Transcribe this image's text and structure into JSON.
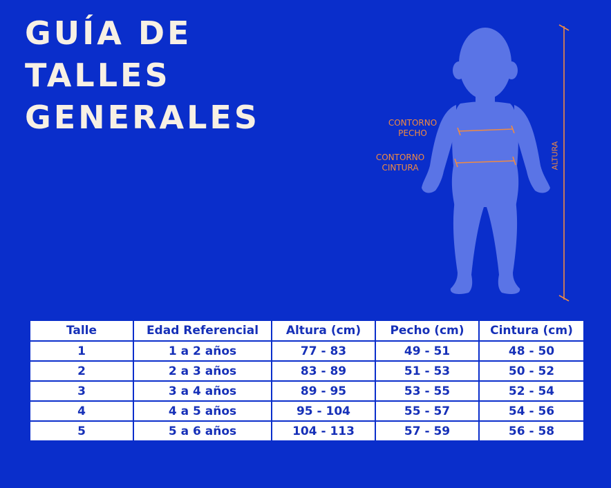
{
  "title_lines": [
    "GUÍA DE",
    "TALLES",
    "GENERALES"
  ],
  "figure": {
    "labels": {
      "chest": "CONTORNO\nPECHO",
      "waist": "CONTORNO\nCINTURA",
      "height": "ALTURA"
    },
    "silhouette_color": "#5a74e6",
    "measure_color": "#f08a42"
  },
  "table": {
    "headers": [
      "Talle",
      "Edad Referencial",
      "Altura (cm)",
      "Pecho (cm)",
      "Cintura (cm)"
    ],
    "rows": [
      [
        "1",
        "1 a 2 años",
        "77 - 83",
        "49 - 51",
        "48 - 50"
      ],
      [
        "2",
        "2 a 3 años",
        "83 - 89",
        "51 - 53",
        "50 - 52"
      ],
      [
        "3",
        "3 a 4 años",
        "89 - 95",
        "53 - 55",
        "52 - 54"
      ],
      [
        "4",
        "4 a 5 años",
        "95 - 104",
        "55 - 57",
        "54 - 56"
      ],
      [
        "5",
        "5 a 6 años",
        "104 - 113",
        "57 - 59",
        "56 - 58"
      ]
    ]
  },
  "colors": {
    "background": "#0a2ecb",
    "title": "#f7f0e4",
    "table_text": "#1630b8",
    "table_bg": "#ffffff"
  }
}
